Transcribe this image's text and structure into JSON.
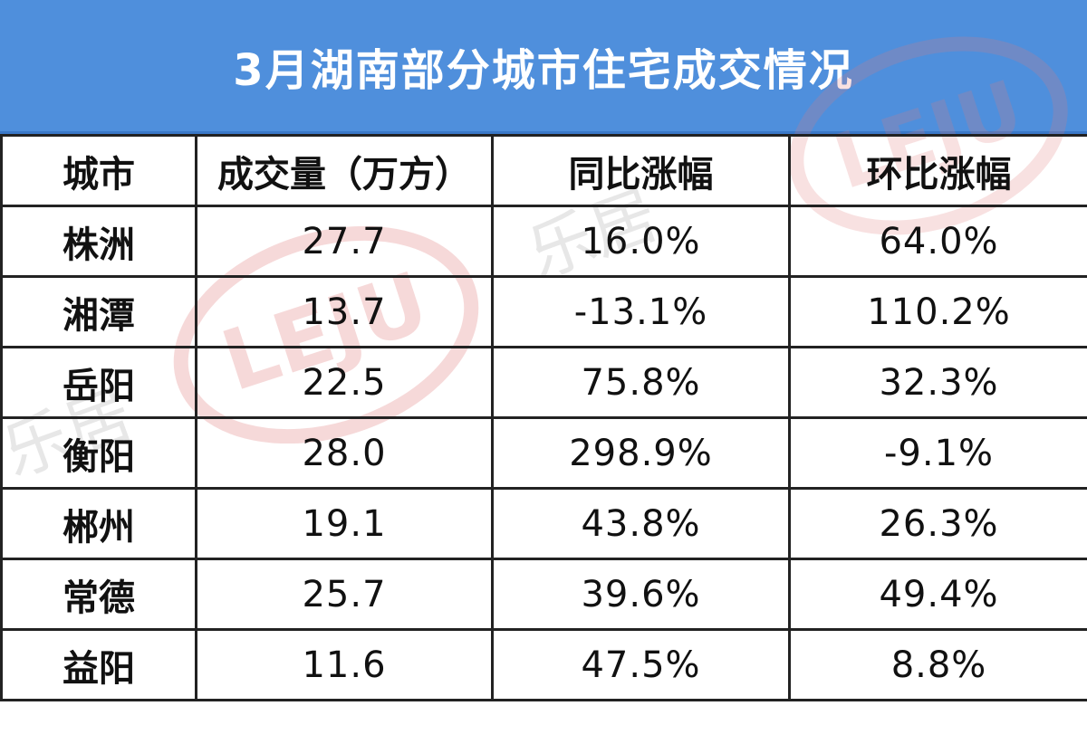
{
  "title": "3月湖南部分城市住宅成交情况",
  "watermark": {
    "logo_text": "LEJU",
    "brand_text": "乐居",
    "color": "#e8a6a6"
  },
  "colors": {
    "header_bg": "#4f8fdc",
    "border": "#222222",
    "text": "#111111"
  },
  "table": {
    "headers": [
      "城市",
      "成交量（万方）",
      "同比涨幅",
      "环比涨幅"
    ],
    "rows": [
      {
        "city": "株洲",
        "volume": "27.7",
        "yoy": "16.0%",
        "mom": "64.0%"
      },
      {
        "city": "湘潭",
        "volume": "13.7",
        "yoy": "-13.1%",
        "mom": "110.2%"
      },
      {
        "city": "岳阳",
        "volume": "22.5",
        "yoy": "75.8%",
        "mom": "32.3%"
      },
      {
        "city": "衡阳",
        "volume": "28.0",
        "yoy": "298.9%",
        "mom": "-9.1%"
      },
      {
        "city": "郴州",
        "volume": "19.1",
        "yoy": "43.8%",
        "mom": "26.3%"
      },
      {
        "city": "常德",
        "volume": "25.7",
        "yoy": "39.6%",
        "mom": "49.4%"
      },
      {
        "city": "益阳",
        "volume": "11.6",
        "yoy": "47.5%",
        "mom": "8.8%"
      }
    ]
  }
}
